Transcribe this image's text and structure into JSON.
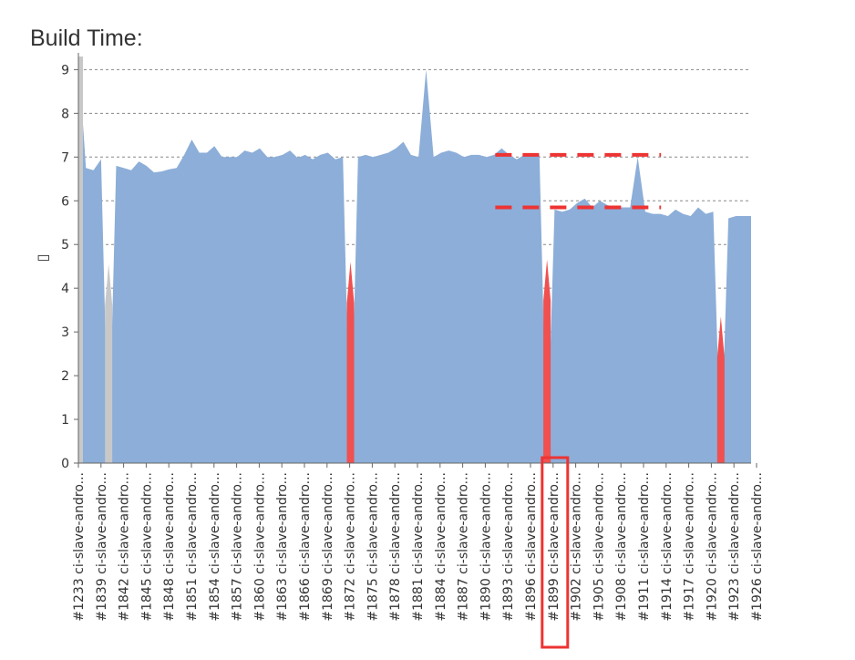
{
  "page": {
    "title": "Build Time:"
  },
  "chart_data": {
    "type": "area",
    "ylabel": "▯",
    "ylim": [
      0,
      9.3
    ],
    "yticks": [
      0,
      1,
      2,
      3,
      4,
      5,
      6,
      7,
      8,
      9
    ],
    "grid": "horizontal dashed",
    "colors": {
      "normal": "#8caed8",
      "failed": "#f05050",
      "aborted": "#c8c8c8",
      "annotation": "#ee3333"
    },
    "builds": [
      {
        "id": 1233,
        "value": 9.3,
        "status": "aborted"
      },
      {
        "id": 1838,
        "value": 6.75
      },
      {
        "id": 1839,
        "value": 6.7
      },
      {
        "id": 1840,
        "value": 6.95
      },
      {
        "id": 1841,
        "value": 0,
        "status": "aborted"
      },
      {
        "id": 1842,
        "value": 6.8
      },
      {
        "id": 1843,
        "value": 6.75
      },
      {
        "id": 1844,
        "value": 6.7
      },
      {
        "id": 1845,
        "value": 6.9
      },
      {
        "id": 1846,
        "value": 6.8
      },
      {
        "id": 1847,
        "value": 6.65
      },
      {
        "id": 1848,
        "value": 6.67
      },
      {
        "id": 1849,
        "value": 6.72
      },
      {
        "id": 1850,
        "value": 6.75
      },
      {
        "id": 1851,
        "value": 7.05
      },
      {
        "id": 1852,
        "value": 7.4
      },
      {
        "id": 1853,
        "value": 7.1
      },
      {
        "id": 1854,
        "value": 7.1
      },
      {
        "id": 1855,
        "value": 7.25
      },
      {
        "id": 1856,
        "value": 7.0
      },
      {
        "id": 1857,
        "value": 7.0
      },
      {
        "id": 1858,
        "value": 7.0
      },
      {
        "id": 1859,
        "value": 7.15
      },
      {
        "id": 1860,
        "value": 7.1
      },
      {
        "id": 1861,
        "value": 7.2
      },
      {
        "id": 1862,
        "value": 7.0
      },
      {
        "id": 1863,
        "value": 7.0
      },
      {
        "id": 1864,
        "value": 7.05
      },
      {
        "id": 1865,
        "value": 7.15
      },
      {
        "id": 1866,
        "value": 6.98
      },
      {
        "id": 1867,
        "value": 7.05
      },
      {
        "id": 1868,
        "value": 6.95
      },
      {
        "id": 1869,
        "value": 7.05
      },
      {
        "id": 1870,
        "value": 7.1
      },
      {
        "id": 1871,
        "value": 6.95
      },
      {
        "id": 1872,
        "value": 7.0
      },
      {
        "id": 1873,
        "value": 0,
        "status": "failed"
      },
      {
        "id": 1874,
        "value": 7.0
      },
      {
        "id": 1875,
        "value": 7.05
      },
      {
        "id": 1876,
        "value": 7.0
      },
      {
        "id": 1877,
        "value": 7.05
      },
      {
        "id": 1878,
        "value": 7.1
      },
      {
        "id": 1879,
        "value": 7.2
      },
      {
        "id": 1880,
        "value": 7.35
      },
      {
        "id": 1881,
        "value": 7.05
      },
      {
        "id": 1882,
        "value": 7.0
      },
      {
        "id": 1883,
        "value": 9.0
      },
      {
        "id": 1884,
        "value": 7.0
      },
      {
        "id": 1885,
        "value": 7.1
      },
      {
        "id": 1886,
        "value": 7.15
      },
      {
        "id": 1887,
        "value": 7.1
      },
      {
        "id": 1888,
        "value": 7.0
      },
      {
        "id": 1889,
        "value": 7.05
      },
      {
        "id": 1890,
        "value": 7.05
      },
      {
        "id": 1891,
        "value": 7.0
      },
      {
        "id": 1892,
        "value": 7.05
      },
      {
        "id": 1893,
        "value": 7.2
      },
      {
        "id": 1894,
        "value": 7.05
      },
      {
        "id": 1895,
        "value": 6.95
      },
      {
        "id": 1896,
        "value": 7.05
      },
      {
        "id": 1897,
        "value": 7.05
      },
      {
        "id": 1898,
        "value": 7.05
      },
      {
        "id": 1899,
        "value": 0,
        "status": "failed"
      },
      {
        "id": 1900,
        "value": 5.8
      },
      {
        "id": 1901,
        "value": 5.75
      },
      {
        "id": 1902,
        "value": 5.8
      },
      {
        "id": 1903,
        "value": 5.95
      },
      {
        "id": 1904,
        "value": 6.05
      },
      {
        "id": 1905,
        "value": 5.85
      },
      {
        "id": 1906,
        "value": 6.0
      },
      {
        "id": 1907,
        "value": 5.9
      },
      {
        "id": 1908,
        "value": 5.85
      },
      {
        "id": 1909,
        "value": 5.85
      },
      {
        "id": 1910,
        "value": 5.85
      },
      {
        "id": 1911,
        "value": 7.0
      },
      {
        "id": 1912,
        "value": 5.75
      },
      {
        "id": 1913,
        "value": 5.7
      },
      {
        "id": 1914,
        "value": 5.7
      },
      {
        "id": 1915,
        "value": 5.65
      },
      {
        "id": 1916,
        "value": 5.8
      },
      {
        "id": 1917,
        "value": 5.7
      },
      {
        "id": 1918,
        "value": 5.65
      },
      {
        "id": 1919,
        "value": 5.85
      },
      {
        "id": 1920,
        "value": 5.7
      },
      {
        "id": 1921,
        "value": 5.75
      },
      {
        "id": 1922,
        "value": 0,
        "status": "failed"
      },
      {
        "id": 1923,
        "value": 5.6
      },
      {
        "id": 1924,
        "value": 5.65
      },
      {
        "id": 1925,
        "value": 5.65
      },
      {
        "id": 1926,
        "value": 5.65
      }
    ],
    "x_tick_labels": [
      "#1233 ci-slave-andro...",
      "#1839 ci-slave-andro...",
      "#1842 ci-slave-andro...",
      "#1845 ci-slave-andro...",
      "#1848 ci-slave-andro...",
      "#1851 ci-slave-andro...",
      "#1854 ci-slave-andro...",
      "#1857 ci-slave-andro...",
      "#1860 ci-slave-andro...",
      "#1863 ci-slave-andro...",
      "#1866 ci-slave-andro...",
      "#1869 ci-slave-andro...",
      "#1872 ci-slave-andro...",
      "#1875 ci-slave-andro...",
      "#1878 ci-slave-andro...",
      "#1881 ci-slave-andro...",
      "#1884 ci-slave-andro...",
      "#1887 ci-slave-andro...",
      "#1890 ci-slave-andro...",
      "#1893 ci-slave-andro...",
      "#1896 ci-slave-andro...",
      "#1899 ci-slave-andro...",
      "#1902 ci-slave-andro...",
      "#1905 ci-slave-andro...",
      "#1908 ci-slave-andro...",
      "#1911 ci-slave-andro...",
      "#1914 ci-slave-andro...",
      "#1917 ci-slave-andro...",
      "#1920 ci-slave-andro...",
      "#1923 ci-slave-andro...",
      "#1926 ci-slave-andro..."
    ],
    "annotations": {
      "reference_lines": [
        7.05,
        5.85
      ],
      "reference_line_from_build": 1893,
      "reference_line_to_build": 1913,
      "highlighted_tick": "#1899 ci-slave-andro..."
    }
  }
}
